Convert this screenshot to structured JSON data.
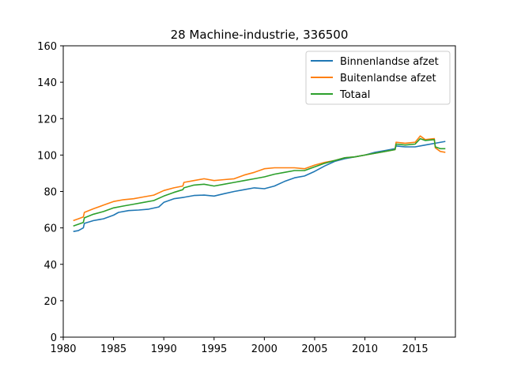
{
  "chart_data": {
    "type": "line",
    "title": "28 Machine-industrie, 336500",
    "xlabel": "",
    "ylabel": "",
    "xlim": [
      1980,
      2019
    ],
    "ylim": [
      0,
      160
    ],
    "xticks": [
      1980,
      1985,
      1990,
      1995,
      2000,
      2005,
      2010,
      2015
    ],
    "yticks": [
      0,
      20,
      40,
      60,
      80,
      100,
      120,
      140,
      160
    ],
    "grid": false,
    "legend_position": "top-right",
    "series": [
      {
        "name": "Binnenlandse afzet",
        "color": "#1f77b4",
        "x": [
          1981.0,
          1981.5,
          1982.0,
          1982.1,
          1983.0,
          1984.0,
          1985.0,
          1985.5,
          1986.5,
          1987.5,
          1988.5,
          1989.5,
          1990.0,
          1991.0,
          1992.0,
          1993.0,
          1994.0,
          1995.0,
          1996.0,
          1997.0,
          1998.0,
          1999.0,
          2000.0,
          2001.0,
          2002.0,
          2003.0,
          2004.0,
          2005.0,
          2006.0,
          2007.0,
          2008.0,
          2009.0,
          2010.0,
          2011.0,
          2012.0,
          2013.0,
          2013.1,
          2014.0,
          2015.0,
          2016.0,
          2017.0,
          2018.0
        ],
        "y": [
          58,
          58.5,
          60,
          62.5,
          64,
          65,
          67,
          68.5,
          69.5,
          69.8,
          70.3,
          71.5,
          74,
          76,
          76.8,
          77.8,
          78,
          77.5,
          78.8,
          80,
          81,
          82,
          81.5,
          83,
          85.5,
          87.5,
          88.5,
          91,
          94,
          96.5,
          98,
          99,
          100,
          101.5,
          102.5,
          103.5,
          105,
          104.5,
          104.5,
          105.5,
          106.5,
          107.5
        ]
      },
      {
        "name": "Buitenlandse afzet",
        "color": "#ff7f0e",
        "x": [
          1981.0,
          1981.5,
          1982.0,
          1982.1,
          1983.0,
          1984.0,
          1985.0,
          1986.0,
          1987.0,
          1988.0,
          1989.0,
          1990.0,
          1991.0,
          1991.9,
          1992.0,
          1993.0,
          1994.0,
          1995.0,
          1996.0,
          1997.0,
          1998.0,
          1999.0,
          2000.0,
          2001.0,
          2002.0,
          2003.0,
          2004.0,
          2005.0,
          2006.0,
          2007.0,
          2008.0,
          2009.0,
          2010.0,
          2011.0,
          2012.0,
          2013.0,
          2013.1,
          2014.0,
          2015.0,
          2015.5,
          2016.0,
          2016.9,
          2017.0,
          2017.5,
          2018.0
        ],
        "y": [
          64,
          65,
          66,
          68.5,
          70.5,
          72.5,
          74.5,
          75.5,
          76,
          77,
          78,
          80.5,
          82,
          83,
          85,
          86,
          87,
          86,
          86.5,
          87,
          89,
          90.5,
          92.5,
          93,
          93,
          93,
          92.5,
          94.5,
          96,
          97,
          98.5,
          99,
          100,
          101,
          102,
          103,
          107,
          106.5,
          107,
          110.5,
          108.5,
          109,
          104,
          102,
          101.5
        ]
      },
      {
        "name": "Totaal",
        "color": "#2ca02c",
        "x": [
          1981.0,
          1981.5,
          1982.0,
          1982.1,
          1983.0,
          1984.0,
          1985.0,
          1986.0,
          1987.0,
          1988.0,
          1989.0,
          1990.0,
          1991.0,
          1991.9,
          1992.0,
          1993.0,
          1994.0,
          1995.0,
          1996.0,
          1997.0,
          1998.0,
          1999.0,
          2000.0,
          2001.0,
          2002.0,
          2003.0,
          2004.0,
          2005.0,
          2006.0,
          2007.0,
          2008.0,
          2009.0,
          2010.0,
          2011.0,
          2012.0,
          2013.0,
          2013.1,
          2014.0,
          2015.0,
          2015.5,
          2016.0,
          2016.9,
          2017.0,
          2017.5,
          2018.0
        ],
        "y": [
          61,
          62,
          63,
          65.5,
          67.5,
          69,
          71,
          72,
          73,
          74,
          75,
          77.5,
          79.5,
          81,
          82,
          83.5,
          84,
          83,
          84,
          85,
          86,
          87,
          88,
          89.5,
          90.5,
          91.5,
          91.5,
          93.5,
          95.5,
          97,
          98.5,
          99,
          100,
          101,
          102,
          103,
          106,
          105.5,
          106,
          109,
          108,
          108.5,
          104.5,
          103.5,
          103.5
        ]
      }
    ]
  }
}
